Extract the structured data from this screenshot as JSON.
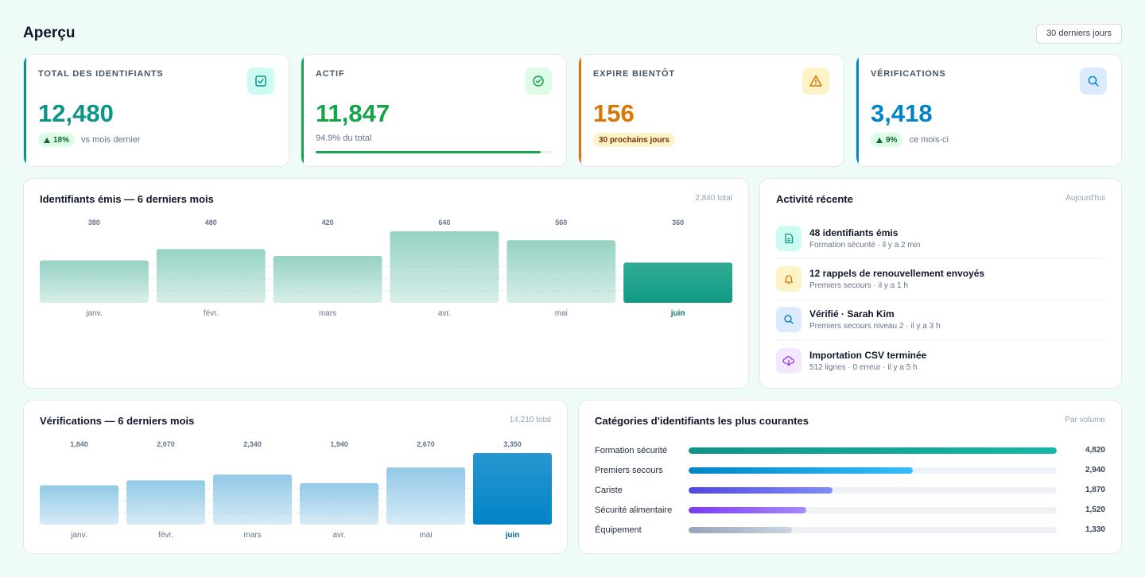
{
  "header": {
    "title": "Aperçu",
    "range_label": "30 derniers jours"
  },
  "kpis": [
    {
      "label": "TOTAL DES IDENTIFIANTS",
      "value": "12,480",
      "badge": "18%",
      "note": "vs mois dernier",
      "icon": "check-square-icon",
      "accent": "#0d9488"
    },
    {
      "label": "ACTIF",
      "value": "11,847",
      "note": "94.9% du total",
      "progress": 0.949,
      "icon": "check-circle-icon",
      "accent": "#16a34a"
    },
    {
      "label": "EXPIRE BIENTÔT",
      "value": "156",
      "badge": "30 prochains jours",
      "icon": "warning-triangle-icon",
      "accent": "#d97706"
    },
    {
      "label": "VÉRIFICATIONS",
      "value": "3,418",
      "badge": "9%",
      "note": "ce mois-ci",
      "icon": "search-icon",
      "accent": "#0284c7"
    }
  ],
  "issued_panel": {
    "title": "Identifiants émis — 6 derniers mois",
    "meta": "2,840 total"
  },
  "verif_panel": {
    "title": "Vérifications — 6 derniers mois",
    "meta": "14,210 total"
  },
  "activity": {
    "title": "Activité récente",
    "meta": "Aujourd'hui",
    "items": [
      {
        "title": "48 identifiants émis",
        "sub": "Formation sécurité · il y a 2 min",
        "icon": "document-icon"
      },
      {
        "title": "12 rappels de renouvellement envoyés",
        "sub": "Premiers secours · il y a 1 h",
        "icon": "bell-icon"
      },
      {
        "title": "Vérifié · Sarah Kim",
        "sub": "Premiers secours niveau 2 · il y a 3 h",
        "icon": "search-icon"
      },
      {
        "title": "Importation CSV terminée",
        "sub": "512 lignes · 0 erreur · il y a 5 h",
        "icon": "cloud-download-icon"
      }
    ]
  },
  "categories": {
    "title": "Catégories d'identifiants les plus courantes",
    "meta": "Par volume",
    "rows": [
      {
        "name": "Formation sécurité",
        "value": "4,820",
        "fraction": 1.0
      },
      {
        "name": "Premiers secours",
        "value": "2,940",
        "fraction": 0.61
      },
      {
        "name": "Cariste",
        "value": "1,870",
        "fraction": 0.39
      },
      {
        "name": "Sécurité alimentaire",
        "value": "1,520",
        "fraction": 0.32
      },
      {
        "name": "Équipement",
        "value": "1,330",
        "fraction": 0.28
      }
    ]
  },
  "chart_data": [
    {
      "type": "bar",
      "categories": [
        "janv.",
        "févr.",
        "mars",
        "avr.",
        "mai",
        "juin"
      ],
      "values": [
        380,
        480,
        420,
        640,
        560,
        360
      ],
      "title": "Identifiants émis — 6 derniers mois",
      "highlight": "juin",
      "colors": {
        "base": "#8fd0c1",
        "highlight": "#0f9b82",
        "label_highlight": "#0f766e"
      }
    },
    {
      "type": "bar",
      "categories": [
        "janv.",
        "févr.",
        "mars",
        "avr.",
        "mai",
        "juin"
      ],
      "values": [
        1840,
        2070,
        2340,
        1940,
        2670,
        3350
      ],
      "title": "Vérifications — 6 derniers mois",
      "highlight": "juin",
      "colors": {
        "base": "#8cc6e6",
        "highlight": "#0284c7",
        "label_highlight": "#0369a1"
      }
    }
  ]
}
